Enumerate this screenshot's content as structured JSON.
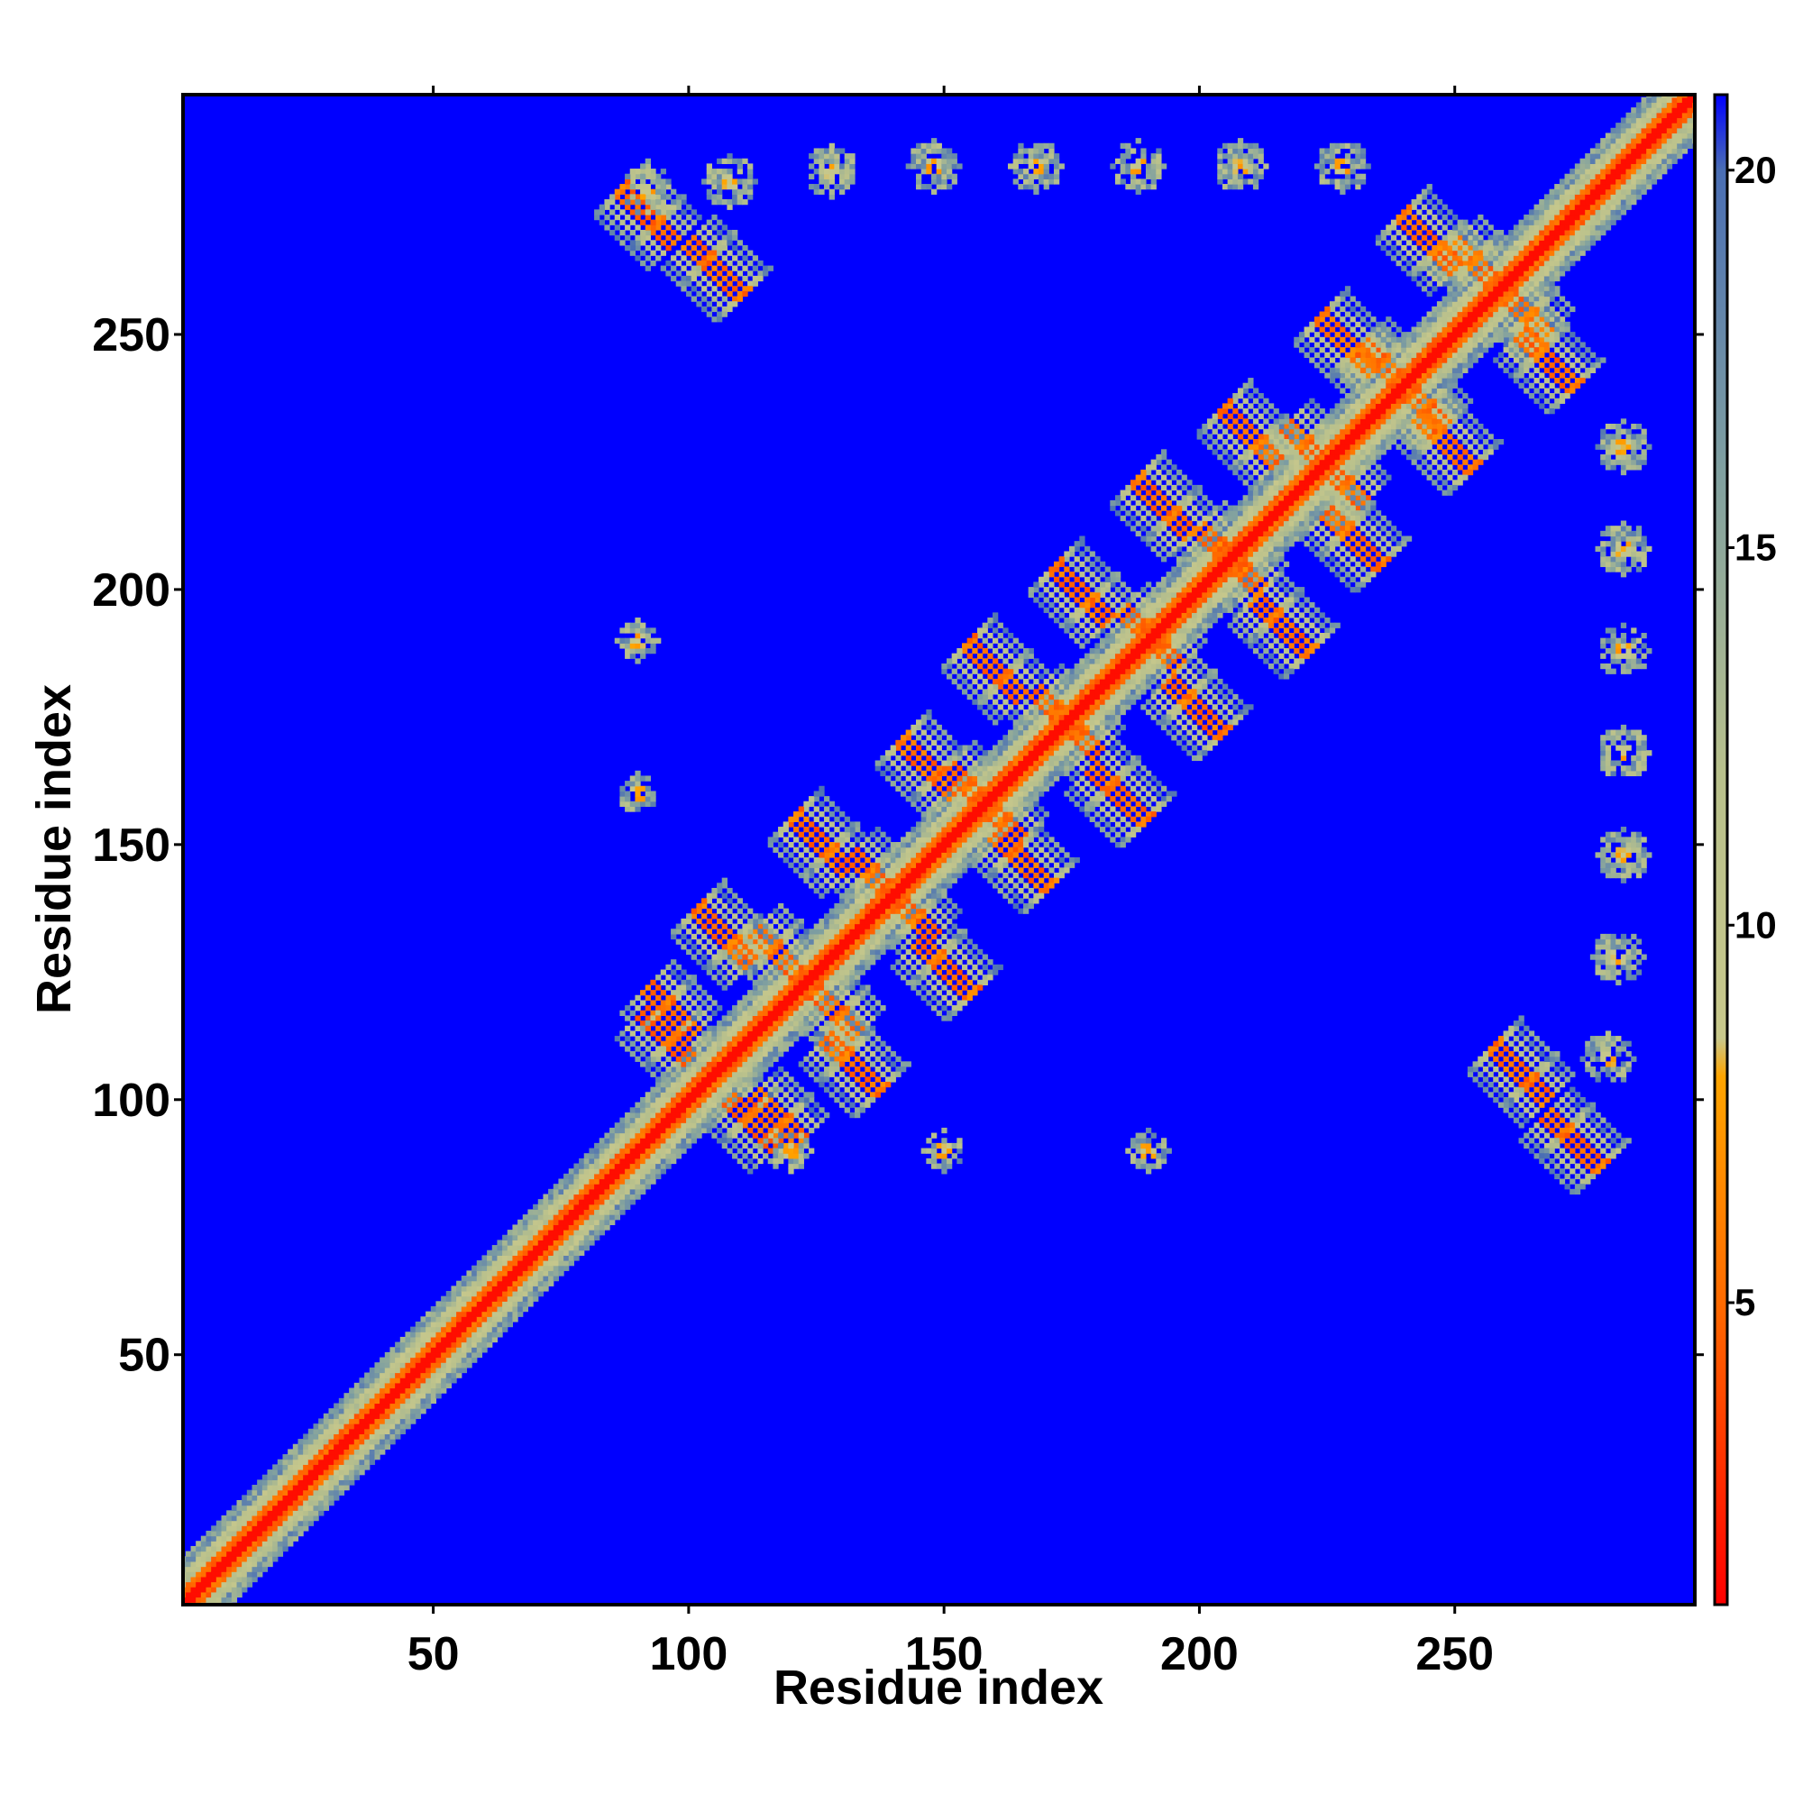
{
  "chart_data": {
    "type": "heatmap",
    "title": "",
    "xlabel": "Residue index",
    "ylabel": "Residue index",
    "xlim": [
      1,
      297
    ],
    "ylim": [
      1,
      297
    ],
    "x_ticks": [
      50,
      100,
      150,
      200,
      250
    ],
    "y_ticks": [
      50,
      100,
      150,
      200,
      250
    ],
    "grid": false,
    "n_residues": 297,
    "diagonal_bands": [
      {
        "from": 1,
        "to": 297,
        "distance_min": 2,
        "distance_max": 9
      }
    ],
    "anti_diagonal_contacts": [
      {
        "x": 92,
        "y": 122,
        "length": 14
      },
      {
        "x": 108,
        "y": 100,
        "length": 14
      },
      {
        "x": 113,
        "y": 133,
        "length": 14
      },
      {
        "x": 127,
        "y": 112,
        "length": 16
      },
      {
        "x": 132,
        "y": 148,
        "length": 14
      },
      {
        "x": 145,
        "y": 131,
        "length": 16
      },
      {
        "x": 151,
        "y": 165,
        "length": 14
      },
      {
        "x": 160,
        "y": 152,
        "length": 16
      },
      {
        "x": 168,
        "y": 180,
        "length": 14
      },
      {
        "x": 179,
        "y": 165,
        "length": 16
      },
      {
        "x": 185,
        "y": 196,
        "length": 14
      },
      {
        "x": 194,
        "y": 182,
        "length": 16
      },
      {
        "x": 200,
        "y": 212,
        "length": 14
      },
      {
        "x": 211,
        "y": 198,
        "length": 16
      },
      {
        "x": 217,
        "y": 232,
        "length": 14
      },
      {
        "x": 225,
        "y": 215,
        "length": 16
      },
      {
        "x": 232,
        "y": 248,
        "length": 14
      },
      {
        "x": 243,
        "y": 234,
        "length": 16
      },
      {
        "x": 250,
        "y": 268,
        "length": 14
      },
      {
        "x": 263,
        "y": 250,
        "length": 16
      },
      {
        "x": 100,
        "y": 268,
        "length": 16
      },
      {
        "x": 268,
        "y": 97,
        "length": 16
      }
    ],
    "long_range_cross_contacts": [
      {
        "x": 92,
        "y": 278,
        "radius": 5
      },
      {
        "x": 108,
        "y": 280,
        "radius": 5
      },
      {
        "x": 128,
        "y": 282,
        "radius": 5
      },
      {
        "x": 148,
        "y": 283,
        "radius": 5
      },
      {
        "x": 168,
        "y": 283,
        "radius": 5
      },
      {
        "x": 188,
        "y": 283,
        "radius": 5
      },
      {
        "x": 208,
        "y": 283,
        "radius": 5
      },
      {
        "x": 228,
        "y": 283,
        "radius": 5
      },
      {
        "x": 280,
        "y": 108,
        "radius": 5
      },
      {
        "x": 282,
        "y": 128,
        "radius": 5
      },
      {
        "x": 283,
        "y": 148,
        "radius": 5
      },
      {
        "x": 283,
        "y": 168,
        "radius": 5
      },
      {
        "x": 283,
        "y": 188,
        "radius": 5
      },
      {
        "x": 283,
        "y": 208,
        "radius": 5
      },
      {
        "x": 283,
        "y": 228,
        "radius": 5
      },
      {
        "x": 120,
        "y": 90,
        "radius": 4
      },
      {
        "x": 150,
        "y": 90,
        "radius": 4
      },
      {
        "x": 190,
        "y": 90,
        "radius": 4
      },
      {
        "x": 90,
        "y": 160,
        "radius": 4
      },
      {
        "x": 90,
        "y": 190,
        "radius": 4
      }
    ],
    "background_value": 21,
    "colorbar": {
      "ticks": [
        5,
        10,
        15,
        20
      ],
      "range": [
        1,
        21
      ],
      "stops": [
        {
          "value": 1,
          "color": "#ff0000"
        },
        {
          "value": 5,
          "color": "#ff6a00"
        },
        {
          "value": 8,
          "color": "#ffa500"
        },
        {
          "value": 8.5,
          "color": "#c8c88c"
        },
        {
          "value": 12,
          "color": "#b8c08c"
        },
        {
          "value": 16,
          "color": "#80a0a0"
        },
        {
          "value": 20,
          "color": "#4a6eb4"
        },
        {
          "value": 21,
          "color": "#0000ff"
        }
      ]
    }
  }
}
